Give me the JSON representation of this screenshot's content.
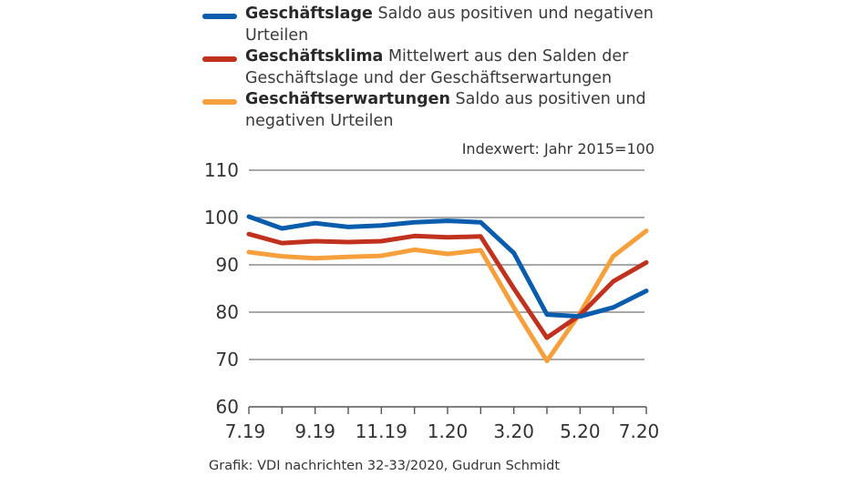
{
  "chart_data": {
    "type": "line",
    "title": "",
    "xlabel": "",
    "ylabel": "",
    "unit_note": "Indexwert: Jahr 2015=100",
    "source": "Grafik: VDI nachrichten 32-33/2020, Gudrun Schmidt",
    "x": [
      "7.19",
      "8.19",
      "9.19",
      "10.19",
      "11.19",
      "12.19",
      "1.20",
      "2.20",
      "3.20",
      "4.20",
      "5.20",
      "6.20",
      "7.20"
    ],
    "x_tick_labels": [
      "7.19",
      "",
      "9.19",
      "",
      "11.19",
      "",
      "1.20",
      "",
      "3.20",
      "",
      "5.20",
      "",
      "7.20"
    ],
    "ylim": [
      60,
      110
    ],
    "y_ticks": [
      60,
      70,
      80,
      90,
      100,
      110
    ],
    "grid": true,
    "legend_position": "top",
    "series": [
      {
        "name": "Geschäftslage",
        "description": "Saldo aus positiven und negativen Urteilen",
        "color": "#0a5cad",
        "values": [
          100.2,
          97.7,
          98.8,
          98.0,
          98.3,
          99.0,
          99.3,
          99.0,
          92.5,
          79.5,
          79.1,
          81.0,
          84.5
        ]
      },
      {
        "name": "Geschäftsklima",
        "description": "Mittelwert aus den Salden der Geschäftslage und der Geschäftserwartungen",
        "color": "#c0321e",
        "values": [
          96.5,
          94.6,
          95.0,
          94.8,
          95.0,
          96.1,
          95.8,
          96.0,
          85.0,
          74.6,
          79.4,
          86.5,
          90.5
        ]
      },
      {
        "name": "Geschäftserwartungen",
        "description": "Saldo aus positiven und negativen Urteilen",
        "color": "#f5a03c",
        "values": [
          92.7,
          91.8,
          91.4,
          91.7,
          91.9,
          93.2,
          92.3,
          93.1,
          81.0,
          69.7,
          79.8,
          91.8,
          97.2
        ]
      }
    ]
  }
}
